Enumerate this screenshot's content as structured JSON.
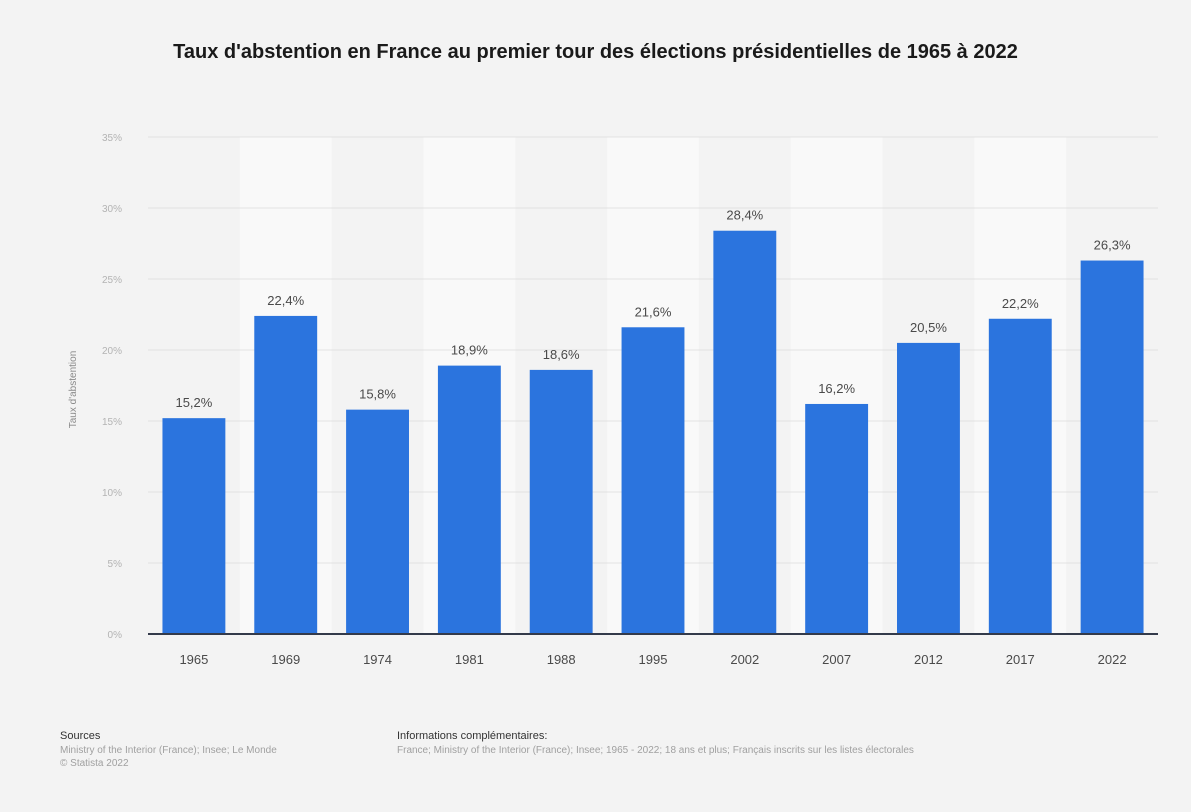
{
  "chart_data": {
    "type": "bar",
    "title": "Taux d'abstention en France au premier tour des élections présidentielles de 1965 à 2022",
    "xlabel": "",
    "ylabel": "Taux d'abstention",
    "categories": [
      "1965",
      "1969",
      "1974",
      "1981",
      "1988",
      "1995",
      "2002",
      "2007",
      "2012",
      "2017",
      "2022"
    ],
    "values": [
      15.2,
      22.4,
      15.8,
      18.9,
      18.6,
      21.6,
      28.4,
      16.2,
      20.5,
      22.2,
      26.3
    ],
    "value_labels": [
      "15,2%",
      "22,4%",
      "15,8%",
      "18,9%",
      "18,6%",
      "21,6%",
      "28,4%",
      "16,2%",
      "20,5%",
      "22,2%",
      "26,3%"
    ],
    "ylim": [
      0,
      35
    ],
    "yticks": [
      0,
      5,
      10,
      15,
      20,
      25,
      30,
      35
    ],
    "ytick_labels": [
      "0%",
      "5%",
      "10%",
      "15%",
      "20%",
      "25%",
      "30%",
      "35%"
    ],
    "grid": true,
    "bar_color": "#2b74de"
  },
  "footer": {
    "sources_heading": "Sources",
    "sources_line1": "Ministry of the Interior (France); Insee; Le Monde",
    "sources_line2": "© Statista 2022",
    "info_heading": "Informations complémentaires:",
    "info_text": "France; Ministry of the Interior (France); Insee; 1965 - 2022; 18 ans et plus; Français inscrits sur les listes électorales"
  }
}
